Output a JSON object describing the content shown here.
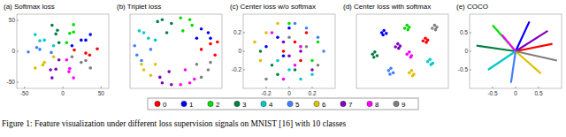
{
  "chart_data": [
    {
      "type": "scatter",
      "title": "(a) Softmax loss",
      "marker": "circle",
      "legend": "bottom",
      "xlim": [
        -60,
        60
      ],
      "ylim": [
        -60,
        60
      ],
      "xticks": [
        -50,
        0,
        50
      ],
      "yticks": [
        -50,
        0,
        50
      ],
      "series": [
        {
          "name": "0",
          "color": "#ff0000",
          "x": [
            15,
            30,
            45,
            35
          ],
          "values": [
            2,
            -3,
            4,
            -6
          ]
        },
        {
          "name": "1",
          "color": "#0000ff",
          "x": [
            12,
            24,
            36,
            30
          ],
          "values": [
            9,
            18,
            27,
            18
          ]
        },
        {
          "name": "2",
          "color": "#00dd00",
          "x": [
            5,
            9,
            14,
            14
          ],
          "values": [
            14,
            29,
            43,
            31
          ]
        },
        {
          "name": "3",
          "color": "#008040",
          "x": [
            -5,
            -9,
            -14,
            -7
          ],
          "values": [
            14,
            28,
            42,
            34
          ]
        },
        {
          "name": "4",
          "color": "#00c8c8",
          "x": [
            -12,
            -24,
            -36,
            -30
          ],
          "values": [
            9,
            18,
            27,
            17
          ]
        },
        {
          "name": "5",
          "color": "#4080ff",
          "x": [
            -15,
            -30,
            -45,
            -34
          ],
          "values": [
            -2,
            3,
            -1,
            6
          ]
        },
        {
          "name": "6",
          "color": "#e0c000",
          "x": [
            -12,
            -24,
            -36,
            -26
          ],
          "values": [
            -9,
            -18,
            -27,
            -22
          ]
        },
        {
          "name": "7",
          "color": "#8000c0",
          "x": [
            -5,
            -9,
            -14,
            -16
          ],
          "values": [
            -14,
            -29,
            -43,
            -30
          ]
        },
        {
          "name": "8",
          "color": "#ff00ff",
          "x": [
            5,
            9,
            14,
            8
          ],
          "values": [
            -14,
            -28,
            -43,
            -33
          ]
        },
        {
          "name": "9",
          "color": "#808080",
          "x": [
            12,
            24,
            36,
            30
          ],
          "values": [
            -9,
            -18,
            -27,
            -15
          ]
        }
      ]
    },
    {
      "type": "scatter",
      "title": "(b) Triplet loss",
      "marker": "circle",
      "tick_labels": false,
      "xlim": [
        -1,
        1
      ],
      "ylim": [
        -1,
        1
      ],
      "series": [
        {
          "color": "#ff0000",
          "x": [
            0.55,
            0.85,
            0.75,
            0.9
          ],
          "values": [
            0.05,
            -0.1,
            0.2,
            0.25
          ]
        },
        {
          "color": "#0000ff",
          "x": [
            0.45,
            0.7,
            0.55,
            0.75
          ],
          "values": [
            0.35,
            0.5,
            0.6,
            0.35
          ]
        },
        {
          "color": "#00dd00",
          "x": [
            0.15,
            0.3,
            0.1,
            0.35
          ],
          "values": [
            0.55,
            0.85,
            0.9,
            0.7
          ]
        },
        {
          "color": "#008040",
          "x": [
            -0.2,
            -0.3,
            -0.1,
            -0.4
          ],
          "values": [
            0.5,
            0.85,
            0.75,
            0.8
          ]
        },
        {
          "color": "#00c8c8",
          "x": [
            -0.45,
            -0.7,
            -0.6,
            -0.8
          ],
          "values": [
            0.3,
            0.5,
            0.35,
            0.55
          ]
        },
        {
          "color": "#4080ff",
          "x": [
            -0.55,
            -0.85,
            -0.9,
            -0.75
          ],
          "values": [
            0.05,
            -0.1,
            0.15,
            -0.25
          ]
        },
        {
          "color": "#e0c000",
          "x": [
            -0.45,
            -0.7,
            -0.55,
            -0.75
          ],
          "values": [
            -0.35,
            -0.5,
            -0.65,
            -0.35
          ]
        },
        {
          "color": "#8000c0",
          "x": [
            -0.15,
            -0.3,
            -0.35,
            -0.1
          ],
          "values": [
            -0.55,
            -0.85,
            -0.7,
            -0.9
          ]
        },
        {
          "color": "#ff00ff",
          "x": [
            0.2,
            0.3,
            0.4,
            0.1
          ],
          "values": [
            -0.5,
            -0.85,
            -0.75,
            -0.9
          ]
        },
        {
          "color": "#808080",
          "x": [
            0.45,
            0.7,
            0.75,
            0.55
          ],
          "values": [
            -0.35,
            -0.5,
            -0.3,
            -0.7
          ]
        }
      ]
    },
    {
      "type": "scatter",
      "title": "(c) Center loss w/o softmax",
      "marker": "circle",
      "xlim": [
        -0.4,
        0.4
      ],
      "ylim": [
        -0.4,
        0.4
      ],
      "xticks": [
        -0.2,
        0,
        0.2
      ],
      "yticks": [
        -0.2,
        0,
        0.2
      ],
      "series": [
        {
          "color": "#ff0000",
          "x": [
            0.05,
            0.15,
            -0.05,
            0.1
          ],
          "values": [
            0.1,
            0.2,
            0.0,
            -0.1
          ]
        },
        {
          "color": "#0000ff",
          "x": [
            -0.1,
            0.0,
            -0.2,
            -0.05
          ],
          "values": [
            0.15,
            0.25,
            0.05,
            -0.05
          ]
        },
        {
          "color": "#00dd00",
          "x": [
            0.2,
            0.1,
            0.25,
            0.0
          ],
          "values": [
            -0.1,
            0.05,
            0.1,
            0.3
          ]
        },
        {
          "color": "#008040",
          "x": [
            -0.15,
            -0.25,
            -0.1,
            0.05
          ],
          "values": [
            -0.15,
            0.0,
            -0.25,
            -0.2
          ]
        },
        {
          "color": "#00c8c8",
          "x": [
            0.0,
            0.1,
            -0.1,
            0.2
          ],
          "values": [
            -0.2,
            -0.3,
            -0.1,
            -0.25
          ]
        },
        {
          "color": "#4080ff",
          "x": [
            0.15,
            0.25,
            0.05,
            0.3
          ],
          "values": [
            0.25,
            0.15,
            0.3,
            0.0
          ]
        },
        {
          "color": "#e0c000",
          "x": [
            -0.2,
            -0.3,
            -0.1,
            -0.25
          ],
          "values": [
            0.2,
            0.1,
            0.3,
            -0.1
          ]
        },
        {
          "color": "#8000c0",
          "x": [
            0.1,
            0.0,
            0.2,
            -0.05
          ],
          "values": [
            0.0,
            -0.05,
            -0.2,
            0.1
          ]
        },
        {
          "color": "#ff00ff",
          "x": [
            -0.05,
            0.05,
            -0.15,
            0.1
          ],
          "values": [
            -0.3,
            -0.15,
            0.2,
            0.05
          ]
        },
        {
          "color": "#808080",
          "x": [
            0.25,
            -0.2,
            0.15,
            0.0
          ],
          "values": [
            -0.15,
            -0.3,
            0.05,
            0.15
          ]
        }
      ]
    },
    {
      "type": "scatter",
      "title": "(d) Center loss with softmax",
      "marker": "circle",
      "tick_labels": false,
      "xlim": [
        -1,
        1
      ],
      "ylim": [
        -1,
        1
      ],
      "series": [
        {
          "color": "#ff0000",
          "x": [
            0.45,
            0.5,
            0.55,
            0.52
          ],
          "values": [
            0.28,
            0.35,
            0.3,
            0.24
          ]
        },
        {
          "color": "#0000ff",
          "x": [
            -0.45,
            -0.4,
            -0.35,
            -0.42
          ],
          "values": [
            0.5,
            0.56,
            0.48,
            0.44
          ]
        },
        {
          "color": "#00dd00",
          "x": [
            0.05,
            0.1,
            0.15,
            0.12
          ],
          "values": [
            0.62,
            0.7,
            0.65,
            0.58
          ]
        },
        {
          "color": "#008040",
          "x": [
            -0.65,
            -0.6,
            -0.55,
            -0.62
          ],
          "values": [
            -0.08,
            -0.02,
            -0.12,
            -0.16
          ]
        },
        {
          "color": "#00c8c8",
          "x": [
            0.55,
            0.6,
            0.66,
            0.62
          ],
          "values": [
            -0.28,
            -0.22,
            -0.32,
            -0.36
          ]
        },
        {
          "color": "#4080ff",
          "x": [
            -0.3,
            -0.25,
            -0.2,
            -0.27
          ],
          "values": [
            -0.52,
            -0.46,
            -0.58,
            -0.62
          ]
        },
        {
          "color": "#e0c000",
          "x": [
            0.15,
            0.2,
            0.25,
            0.22
          ],
          "values": [
            -0.58,
            -0.52,
            -0.62,
            -0.66
          ]
        },
        {
          "color": "#8000c0",
          "x": [
            -0.15,
            -0.1,
            -0.05,
            -0.08
          ],
          "values": [
            0.12,
            0.2,
            0.14,
            0.08
          ]
        },
        {
          "color": "#ff00ff",
          "x": [
            0.1,
            0.15,
            0.2,
            0.18
          ],
          "values": [
            -0.08,
            -0.02,
            -0.12,
            -0.16
          ]
        },
        {
          "color": "#808080",
          "x": [
            0.65,
            0.7,
            0.75,
            0.72
          ],
          "values": [
            0.62,
            0.7,
            0.65,
            0.58
          ]
        }
      ]
    },
    {
      "type": "line",
      "title": "(e) COCO",
      "line_style": "solid",
      "xlim": [
        -1,
        1
      ],
      "ylim": [
        -1,
        1
      ],
      "xticks": [
        -0.5,
        0,
        0.5
      ],
      "yticks": [
        -0.5,
        0,
        0.5
      ],
      "series": [
        {
          "color": "#ff0000",
          "x": [
            0,
            0.8
          ],
          "values": [
            0,
            0.2
          ]
        },
        {
          "color": "#0000ff",
          "x": [
            0,
            0.3
          ],
          "values": [
            0,
            0.8
          ]
        },
        {
          "color": "#00dd00",
          "x": [
            0,
            -0.5
          ],
          "values": [
            0,
            0.7
          ]
        },
        {
          "color": "#008040",
          "x": [
            0,
            -0.85
          ],
          "values": [
            0,
            0.15
          ]
        },
        {
          "color": "#00c8c8",
          "x": [
            0,
            -0.6
          ],
          "values": [
            0,
            -0.5
          ]
        },
        {
          "color": "#4080ff",
          "x": [
            0,
            -0.1
          ],
          "values": [
            0,
            -0.85
          ]
        },
        {
          "color": "#e0c000",
          "x": [
            0,
            0.55
          ],
          "values": [
            0,
            -0.6
          ]
        },
        {
          "color": "#8000c0",
          "x": [
            0,
            0.7
          ],
          "values": [
            0,
            0.55
          ]
        },
        {
          "color": "#ff00ff",
          "x": [
            0,
            -0.3
          ],
          "values": [
            0,
            0.45
          ]
        },
        {
          "color": "#808080",
          "x": [
            0,
            0.9
          ],
          "values": [
            0,
            -0.25
          ]
        }
      ]
    }
  ],
  "caption": "Figure 1: Feature visualization under different loss supervision signals on MNIST [16] with 10 classes"
}
